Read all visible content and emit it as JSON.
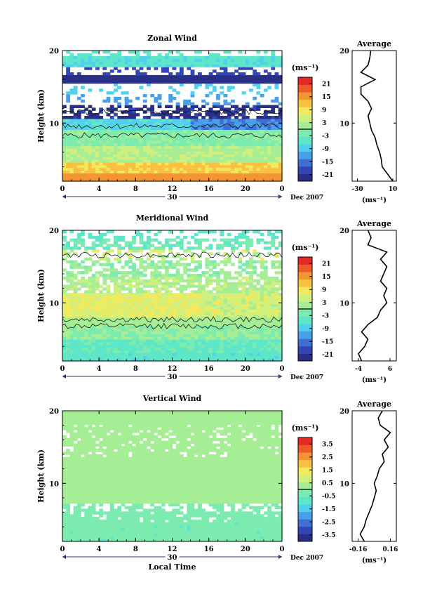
{
  "chart_data": [
    {
      "type": "heatmap",
      "title": "Zonal Wind",
      "ylabel": "Height (km)",
      "xlabel": "",
      "xticks": [
        "0",
        "4",
        "8",
        "12",
        "16",
        "20",
        "0"
      ],
      "yticks": [
        "10",
        "20"
      ],
      "xlim": [
        0,
        24
      ],
      "ylim": [
        2,
        20
      ],
      "date_label": "Dec 2007",
      "day_label": "30",
      "colorbar": {
        "unit": "(ms⁻¹)",
        "ticks": [
          "21",
          "15",
          "9",
          "3",
          "-3",
          "-9",
          "-15",
          "-21"
        ],
        "range": [
          -24,
          24
        ]
      },
      "profile": {
        "title": "Average",
        "xticks": [
          "-30",
          "10"
        ],
        "xlim": [
          -36,
          14
        ],
        "xunit": "(ms⁻¹)",
        "yticks": [
          "10",
          "20"
        ],
        "heights": [
          2,
          3,
          4,
          5,
          6,
          7,
          8,
          9,
          10,
          11,
          12,
          13,
          14,
          15,
          16,
          17,
          18,
          19,
          20
        ],
        "values": [
          10,
          4,
          -2,
          -3,
          -5,
          -8,
          -10,
          -14,
          -16,
          -18,
          -14,
          -18,
          -26,
          -26,
          -10,
          -26,
          -18,
          -16,
          -15
        ]
      }
    },
    {
      "type": "heatmap",
      "title": "Meridional Wind",
      "ylabel": "Height (km)",
      "xlabel": "",
      "xticks": [
        "0",
        "4",
        "8",
        "12",
        "16",
        "20",
        "0"
      ],
      "yticks": [
        "10",
        "20"
      ],
      "xlim": [
        0,
        24
      ],
      "ylim": [
        2,
        20
      ],
      "date_label": "Dec 2007",
      "day_label": "30",
      "colorbar": {
        "unit": "(ms⁻¹)",
        "ticks": [
          "21",
          "15",
          "9",
          "3",
          "-3",
          "-9",
          "-15",
          "-21"
        ],
        "range": [
          -24,
          24
        ]
      },
      "profile": {
        "title": "Average",
        "xticks": [
          "-4",
          "6"
        ],
        "xlim": [
          -6,
          8
        ],
        "xunit": "(ms⁻¹)",
        "yticks": [
          "10",
          "20"
        ],
        "heights": [
          2,
          3,
          4,
          5,
          6,
          7,
          8,
          9,
          10,
          11,
          12,
          13,
          14,
          15,
          16,
          17,
          18,
          19,
          20
        ],
        "values": [
          -3,
          -4,
          -2,
          -1,
          -3,
          -1,
          2,
          3,
          5,
          4,
          5,
          3,
          4,
          5,
          3,
          5,
          -1,
          0,
          -1
        ]
      }
    },
    {
      "type": "heatmap",
      "title": "Vertical Wind",
      "ylabel": "Height (km)",
      "xlabel": "Local Time",
      "xticks": [
        "0",
        "4",
        "8",
        "12",
        "16",
        "20",
        "0"
      ],
      "yticks": [
        "10",
        "20"
      ],
      "xlim": [
        0,
        24
      ],
      "ylim": [
        2,
        20
      ],
      "date_label": "Dec 2007",
      "day_label": "30",
      "colorbar": {
        "unit": "(ms⁻¹)",
        "ticks": [
          "3.5",
          "2.5",
          "1.5",
          "0.5",
          "-0.5",
          "-1.5",
          "-2.5",
          "-3.5"
        ],
        "range": [
          -4,
          4
        ]
      },
      "profile": {
        "title": "Average",
        "xticks": [
          "-0.16",
          "0.16"
        ],
        "xlim": [
          -0.22,
          0.22
        ],
        "xunit": "(ms⁻¹)",
        "yticks": [
          "10",
          "20"
        ],
        "heights": [
          2,
          3,
          4,
          5,
          6,
          7,
          8,
          9,
          10,
          11,
          12,
          13,
          14,
          15,
          16,
          17,
          18,
          19,
          20
        ],
        "values": [
          -0.1,
          -0.14,
          -0.1,
          -0.08,
          -0.05,
          -0.02,
          0.0,
          0.02,
          0.0,
          0.03,
          0.05,
          0.1,
          0.08,
          0.14,
          0.1,
          0.16,
          0.06,
          0.04,
          0.08
        ]
      }
    }
  ]
}
